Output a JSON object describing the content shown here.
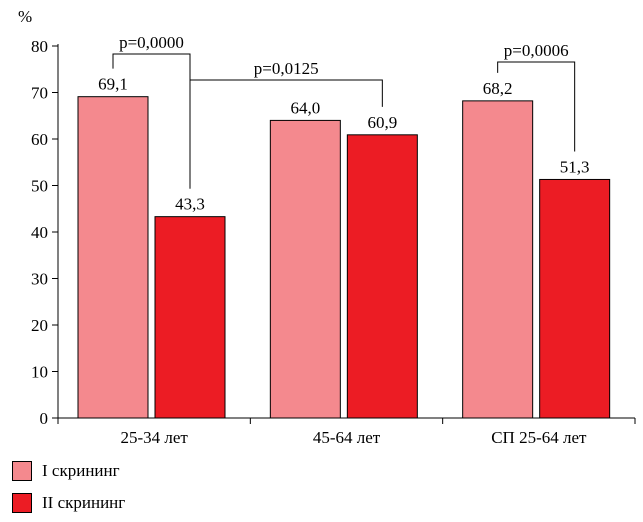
{
  "chart_data": {
    "type": "bar",
    "ylabel": "%",
    "ylim": [
      0,
      80
    ],
    "yticks": [
      0,
      10,
      20,
      30,
      40,
      50,
      60,
      70,
      80
    ],
    "categories": [
      "25-34 лет",
      "45-64 лет",
      "СП 25-64 лет"
    ],
    "series": [
      {
        "name": "I скрининг",
        "values": [
          69.1,
          64.0,
          68.2
        ],
        "labels": [
          "69,1",
          "64,0",
          "68,2"
        ],
        "color": "#F4898E"
      },
      {
        "name": "II скрининг",
        "values": [
          43.3,
          60.9,
          51.3
        ],
        "labels": [
          "43,3",
          "60,9",
          "51,3"
        ],
        "color": "#EC1C24"
      }
    ],
    "annotations": [
      {
        "text": "p=0,0000",
        "from": [
          0,
          0
        ],
        "to": [
          0,
          1
        ]
      },
      {
        "text": "p=0,0125",
        "from": [
          0,
          1
        ],
        "to": [
          1,
          1
        ]
      },
      {
        "text": "p=0,0006",
        "from": [
          2,
          0
        ],
        "to": [
          2,
          1
        ]
      }
    ],
    "legend": "bottom-left",
    "grid": false
  }
}
